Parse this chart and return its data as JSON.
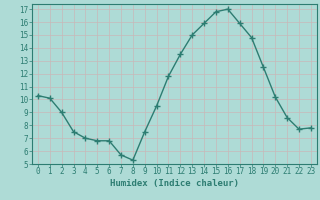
{
  "x": [
    0,
    1,
    2,
    3,
    4,
    5,
    6,
    7,
    8,
    9,
    10,
    11,
    12,
    13,
    14,
    15,
    16,
    17,
    18,
    19,
    20,
    21,
    22,
    23
  ],
  "y": [
    10.3,
    10.1,
    9.0,
    7.5,
    7.0,
    6.8,
    6.8,
    5.7,
    5.3,
    7.5,
    9.5,
    11.8,
    13.5,
    15.0,
    15.9,
    16.8,
    17.0,
    15.9,
    14.8,
    12.5,
    10.2,
    8.6,
    7.7,
    7.8
  ],
  "line_color": "#2d7d72",
  "marker": "+",
  "marker_size": 4.0,
  "bg_color": "#aedbd6",
  "grid_color": "#c8b8b8",
  "xlabel": "Humidex (Indice chaleur)",
  "xlim": [
    -0.5,
    23.5
  ],
  "ylim": [
    5,
    17.4
  ],
  "yticks": [
    5,
    6,
    7,
    8,
    9,
    10,
    11,
    12,
    13,
    14,
    15,
    16,
    17
  ],
  "xticks": [
    0,
    1,
    2,
    3,
    4,
    5,
    6,
    7,
    8,
    9,
    10,
    11,
    12,
    13,
    14,
    15,
    16,
    17,
    18,
    19,
    20,
    21,
    22,
    23
  ],
  "tick_label_fontsize": 5.5,
  "xlabel_fontsize": 6.5,
  "axis_color": "#2d7d72",
  "spine_color": "#2d7d72",
  "line_width": 1.0,
  "marker_color": "#2d7d72"
}
